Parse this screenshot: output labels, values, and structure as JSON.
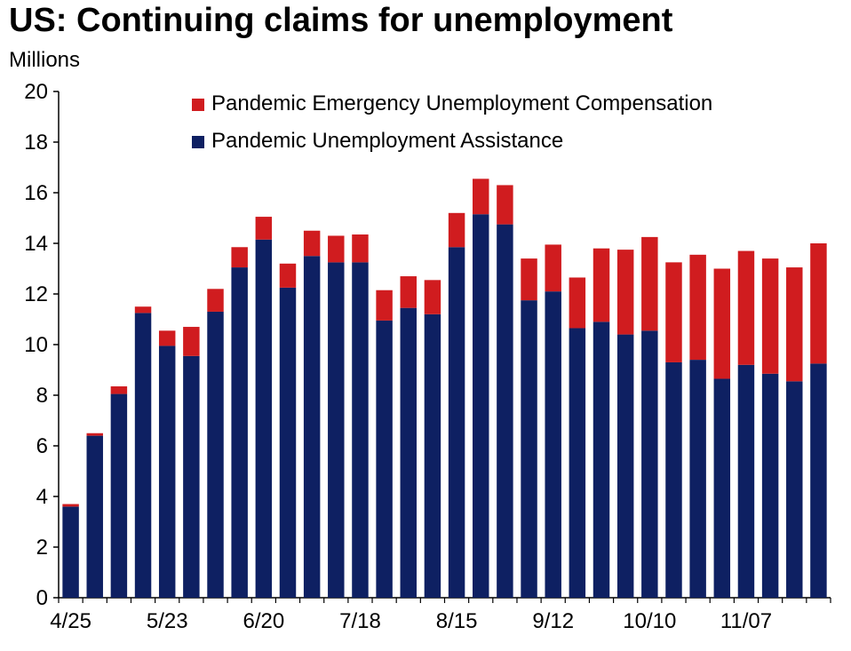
{
  "chart_data": {
    "type": "bar",
    "stacked": true,
    "title": "US: Continuing claims for unemployment",
    "ylabel": "Millions",
    "ylim": [
      0,
      20
    ],
    "yticks": [
      0,
      2,
      4,
      6,
      8,
      10,
      12,
      14,
      16,
      18,
      20
    ],
    "xtick_labels": [
      "4/25",
      "5/23",
      "6/20",
      "7/18",
      "8/15",
      "9/12",
      "10/10",
      "11/07"
    ],
    "xtick_every": 4,
    "categories": [
      "4/25",
      "5/02",
      "5/09",
      "5/16",
      "5/23",
      "5/30",
      "6/06",
      "6/13",
      "6/20",
      "6/27",
      "7/04",
      "7/11",
      "7/18",
      "7/25",
      "8/01",
      "8/08",
      "8/15",
      "8/22",
      "8/29",
      "9/05",
      "9/12",
      "9/19",
      "9/26",
      "10/03",
      "10/10",
      "10/17",
      "10/24",
      "10/31",
      "11/07",
      "11/14",
      "11/21",
      "11/28"
    ],
    "series": [
      {
        "name": "Pandemic Unemployment Assistance",
        "color": "#0e2062",
        "values": [
          3.6,
          6.4,
          8.05,
          11.25,
          9.95,
          9.55,
          11.3,
          13.05,
          14.15,
          12.25,
          13.5,
          13.25,
          13.25,
          10.95,
          11.45,
          11.2,
          13.85,
          15.15,
          14.75,
          11.75,
          12.1,
          10.65,
          10.9,
          10.4,
          10.55,
          9.3,
          9.4,
          8.65,
          9.2,
          8.85,
          8.55,
          9.25
        ]
      },
      {
        "name": "Pandemic Emergency Unemployment Compensation",
        "color": "#d01c1f",
        "values": [
          0.1,
          0.1,
          0.3,
          0.25,
          0.6,
          1.15,
          0.9,
          0.8,
          0.9,
          0.95,
          1.0,
          1.05,
          1.1,
          1.2,
          1.25,
          1.35,
          1.35,
          1.4,
          1.55,
          1.65,
          1.85,
          2.0,
          2.9,
          3.35,
          3.7,
          3.95,
          4.15,
          4.35,
          4.5,
          4.55,
          4.5,
          4.75
        ]
      }
    ],
    "legend": {
      "position": "top",
      "order": [
        "Pandemic Emergency Unemployment Compensation",
        "Pandemic Unemployment Assistance"
      ]
    },
    "grid": false
  }
}
